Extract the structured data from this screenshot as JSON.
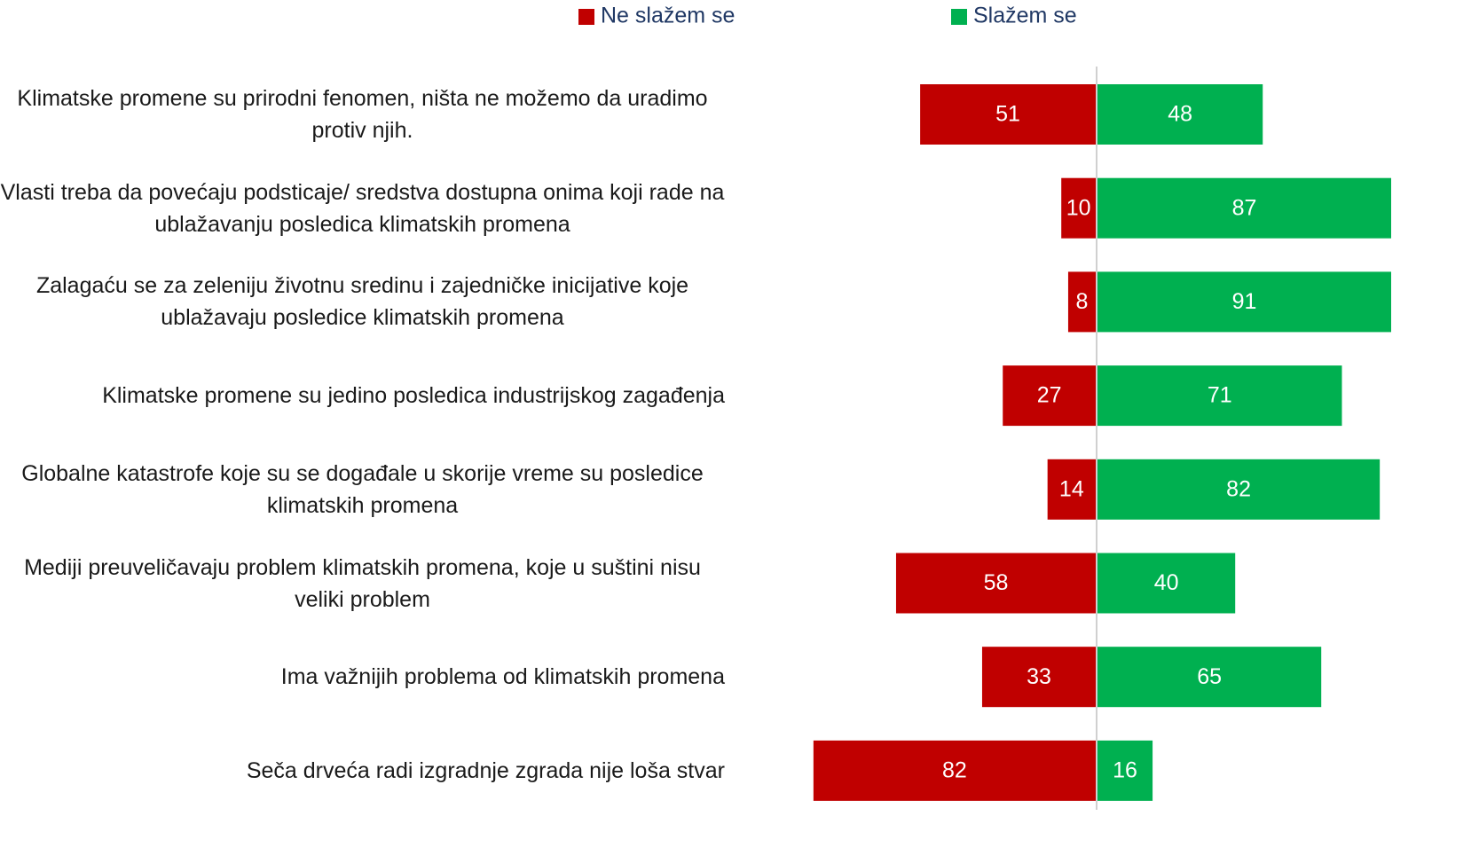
{
  "chart_data": {
    "type": "diverging-bar",
    "categories": [
      "Klimatske promene su prirodni fenomen, ništa ne možemo da uradimo protiv njih.",
      "Vlasti treba da povećaju podsticaje/ sredstva dostupna onima koji rade na ublažavanju posledica klimatskih promena",
      "Zalagaću se za zeleniju životnu sredinu i zajedničke inicijative koje ublažavaju posledice klimatskih promena",
      "Klimatske promene su jedino posledica industrijskog zagađenja",
      "Globalne katastrofe koje su se događale u skorije vreme su posledice klimatskih promena",
      "Mediji preuveličavaju problem klimatskih promena, koje u suštini nisu veliki problem",
      "Ima važnijih problema od klimatskih promena",
      "Seča drveća radi izgradnje zgrada nije loša stvar"
    ],
    "series": [
      {
        "name": "Ne slažem se",
        "color": "#c00000",
        "values": [
          51,
          10,
          8,
          27,
          14,
          58,
          33,
          82
        ]
      },
      {
        "name": "Slažem se",
        "color": "#00b050",
        "values": [
          48,
          87,
          91,
          71,
          82,
          40,
          65,
          16
        ]
      }
    ]
  }
}
